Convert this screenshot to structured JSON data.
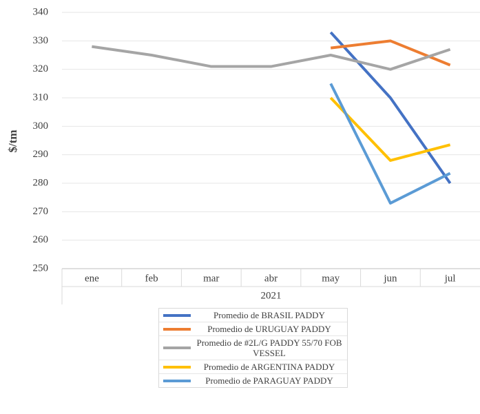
{
  "chart_data": {
    "type": "line",
    "y_label": "$/tm",
    "x_group": "2021",
    "categories": [
      "ene",
      "feb",
      "mar",
      "abr",
      "may",
      "jun",
      "jul"
    ],
    "ylim": [
      250,
      340
    ],
    "yticks": [
      250,
      260,
      270,
      280,
      290,
      300,
      310,
      320,
      330,
      340
    ],
    "grid": true,
    "legend": "bottom",
    "series": [
      {
        "name": "Promedio de BRASIL PADDY",
        "color": "#4472c4",
        "values": [
          null,
          null,
          null,
          null,
          333,
          310,
          280
        ]
      },
      {
        "name": "Promedio de URUGUAY PADDY",
        "color": "#ed7d31",
        "values": [
          null,
          null,
          null,
          null,
          327.5,
          330,
          321.5
        ]
      },
      {
        "name": "Promedio de #2L/G PADDY 55/70 FOB VESSEL",
        "color": "#a5a5a5",
        "values": [
          328,
          325,
          321,
          321,
          325,
          320,
          327
        ]
      },
      {
        "name": "Promedio de ARGENTINA PADDY",
        "color": "#ffc000",
        "values": [
          null,
          null,
          null,
          null,
          310,
          288,
          293.5
        ]
      },
      {
        "name": "Promedio de PARAGUAY PADDY",
        "color": "#5b9bd5",
        "values": [
          null,
          null,
          null,
          null,
          315,
          273,
          283.5
        ]
      }
    ]
  }
}
